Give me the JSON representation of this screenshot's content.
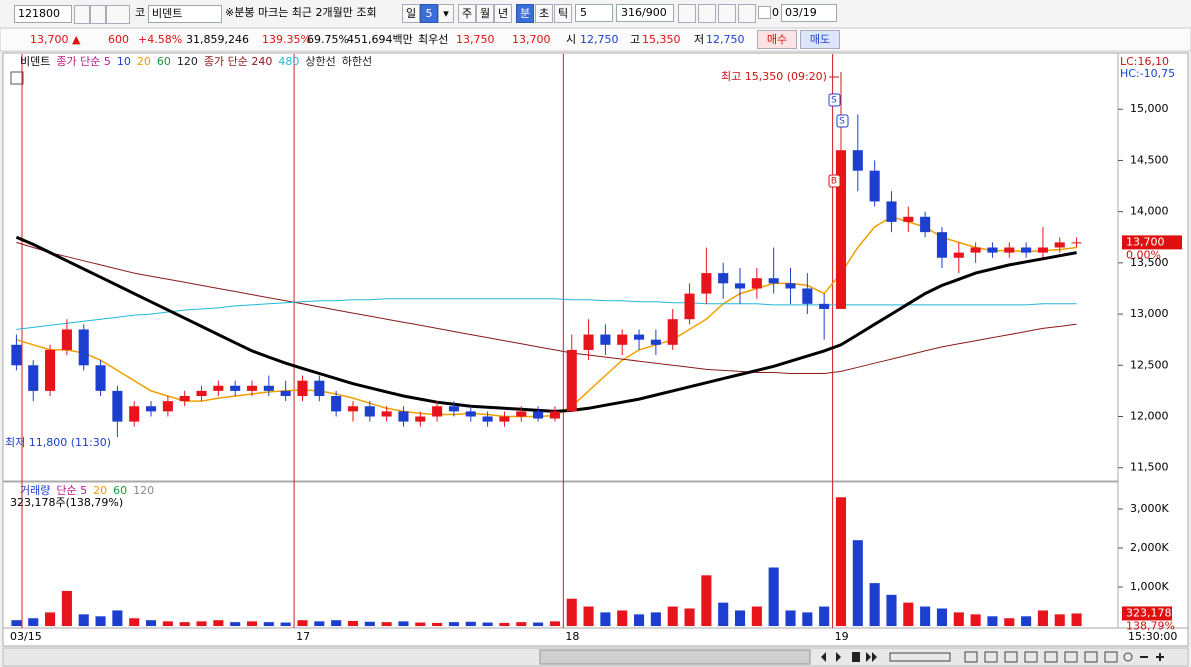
{
  "toolbar": {
    "code": "121800",
    "market": "코",
    "name": "비덴트",
    "note": "※분봉 마크는 최근 2개월만 조회",
    "day": "일",
    "day_count": "5",
    "week": "주",
    "month": "월",
    "year": "년",
    "minute": "분",
    "second": "초",
    "tick": "틱",
    "interval": "5",
    "count": "316/900",
    "check_label": "0",
    "date": "03/19"
  },
  "quote": {
    "price": "13,700 ▲",
    "change": "600",
    "change_rate": "+4.58%",
    "volume": "31,859,246",
    "volume_rate": "139.35%",
    "rate2": "69.75%",
    "amount": "451,694백만",
    "best_label": "최우선",
    "best_ask": "13,750",
    "best_bid": "13,700",
    "open_label": "시",
    "open": "12,750",
    "high_label": "고",
    "high": "15,350",
    "low_label": "저",
    "low": "12,750",
    "buy": "매수",
    "sell": "매도"
  },
  "chart_data": [
    {
      "type": "candlestick",
      "title": "비덴트",
      "categories": [
        "03/15",
        null,
        null,
        null,
        null,
        null,
        null,
        null,
        null,
        null,
        null,
        null,
        null,
        null,
        null,
        null,
        null,
        "17",
        null,
        null,
        null,
        null,
        null,
        null,
        null,
        null,
        null,
        null,
        null,
        null,
        null,
        null,
        null,
        "18",
        null,
        null,
        null,
        null,
        null,
        null,
        null,
        null,
        null,
        null,
        null,
        null,
        null,
        null,
        null,
        "19",
        null,
        null,
        null,
        null,
        null,
        null,
        null,
        null,
        null,
        null,
        null,
        null,
        null,
        null
      ],
      "open": [
        12700,
        12500,
        12250,
        12650,
        12850,
        12500,
        12250,
        11950,
        12100,
        12050,
        12150,
        12200,
        12250,
        12300,
        12250,
        12300,
        12250,
        12200,
        12350,
        12200,
        12050,
        12100,
        12000,
        12050,
        11950,
        12000,
        12100,
        12050,
        12000,
        11950,
        12000,
        12050,
        11980,
        12050,
        12650,
        12800,
        12700,
        12800,
        12750,
        12700,
        12950,
        13200,
        13400,
        13300,
        13250,
        13350,
        13300,
        13250,
        13100,
        13050,
        14600,
        14400,
        14100,
        13900,
        13950,
        13800,
        13550,
        13600,
        13650,
        13600,
        13650,
        13600,
        13650,
        13700
      ],
      "high": [
        12800,
        12550,
        12700,
        12950,
        12900,
        12550,
        12300,
        12150,
        12150,
        12200,
        12250,
        12300,
        12350,
        12350,
        12350,
        12400,
        12350,
        12400,
        12400,
        12250,
        12150,
        12150,
        12100,
        12100,
        12050,
        12150,
        12150,
        12100,
        12050,
        12050,
        12100,
        12100,
        12100,
        12800,
        12950,
        12900,
        12850,
        12850,
        12850,
        13050,
        13300,
        13650,
        13500,
        13450,
        13450,
        13650,
        13450,
        13400,
        13200,
        15350,
        14950,
        14500,
        14200,
        14050,
        14000,
        13850,
        13700,
        13700,
        13700,
        13700,
        13700,
        13850,
        13750,
        13750
      ],
      "low": [
        12450,
        12150,
        12200,
        12600,
        12450,
        12200,
        11800,
        11900,
        12000,
        12000,
        12100,
        12150,
        12200,
        12200,
        12200,
        12200,
        12150,
        12150,
        12150,
        12000,
        11950,
        11950,
        11950,
        11900,
        11900,
        11950,
        12000,
        11950,
        11900,
        11900,
        11950,
        11950,
        11950,
        12050,
        12550,
        12600,
        12600,
        12650,
        12600,
        12650,
        12900,
        13100,
        13150,
        13100,
        13150,
        13200,
        13100,
        13000,
        12750,
        13050,
        14200,
        14050,
        13800,
        13800,
        13750,
        13450,
        13400,
        13500,
        13550,
        13550,
        13550,
        13550,
        13600,
        13650
      ],
      "close": [
        12500,
        12250,
        12650,
        12850,
        12500,
        12250,
        11950,
        12100,
        12050,
        12150,
        12200,
        12250,
        12300,
        12250,
        12300,
        12250,
        12200,
        12350,
        12200,
        12050,
        12100,
        12000,
        12050,
        11950,
        12000,
        12100,
        12050,
        12000,
        11950,
        12000,
        12050,
        11980,
        12050,
        12650,
        12800,
        12700,
        12800,
        12750,
        12700,
        12950,
        13200,
        13400,
        13300,
        13250,
        13350,
        13300,
        13250,
        13100,
        13050,
        14600,
        14400,
        14100,
        13900,
        13950,
        13800,
        13550,
        13600,
        13650,
        13600,
        13650,
        13600,
        13650,
        13700,
        13700
      ],
      "up_color": "#e8141c",
      "down_color": "#1c3fd0",
      "legend": [
        {
          "label": "종가 단순 5",
          "color": "#c0168c"
        },
        {
          "label": "10",
          "color": "#1c3fd0"
        },
        {
          "label": "20",
          "color": "#f0a000"
        },
        {
          "label": "60",
          "color": "#1a9a3a"
        },
        {
          "label": "120",
          "color": "#222222"
        },
        {
          "label": "종가 단순 240",
          "color": "#8b1a1a"
        },
        {
          "label": "480",
          "color": "#20b8d8"
        },
        {
          "label": "상한선",
          "color": "#222222"
        },
        {
          "label": "하한선",
          "color": "#222222"
        }
      ],
      "lines": [
        {
          "color": "#f0a000",
          "width": 1.5,
          "values": [
            12750,
            12700,
            12650,
            12650,
            12620,
            12550,
            12450,
            12350,
            12250,
            12200,
            12150,
            12150,
            12180,
            12200,
            12220,
            12240,
            12250,
            12260,
            12250,
            12220,
            12180,
            12130,
            12080,
            12050,
            12030,
            12020,
            12020,
            12030,
            12020,
            12000,
            12000,
            12000,
            12010,
            12100,
            12250,
            12400,
            12550,
            12650,
            12700,
            12750,
            12850,
            12950,
            13100,
            13200,
            13250,
            13300,
            13300,
            13280,
            13200,
            13400,
            13650,
            13850,
            13950,
            13900,
            13850,
            13750,
            13700,
            13650,
            13620,
            13620,
            13610,
            13620,
            13630,
            13650
          ]
        },
        {
          "color": "#8b1a1a",
          "width": 1,
          "values": [
            13700,
            13650,
            13600,
            13560,
            13520,
            13480,
            13440,
            13400,
            13370,
            13340,
            13310,
            13280,
            13250,
            13220,
            13190,
            13160,
            13130,
            13100,
            13070,
            13040,
            13010,
            12980,
            12950,
            12920,
            12890,
            12860,
            12830,
            12800,
            12770,
            12740,
            12710,
            12680,
            12650,
            12620,
            12600,
            12580,
            12560,
            12540,
            12520,
            12500,
            12480,
            12460,
            12450,
            12440,
            12430,
            12430,
            12420,
            12420,
            12420,
            12440,
            12480,
            12520,
            12560,
            12600,
            12640,
            12680,
            12710,
            12740,
            12770,
            12800,
            12830,
            12860,
            12880,
            12900
          ]
        },
        {
          "color": "#20b8d8",
          "width": 1,
          "values": [
            12850,
            12870,
            12890,
            12910,
            12930,
            12950,
            12970,
            12990,
            13000,
            13020,
            13040,
            13050,
            13060,
            13080,
            13090,
            13100,
            13110,
            13120,
            13130,
            13130,
            13140,
            13140,
            13150,
            13150,
            13150,
            13150,
            13150,
            13150,
            13150,
            13150,
            13150,
            13150,
            13150,
            13140,
            13140,
            13130,
            13130,
            13120,
            13120,
            13110,
            13110,
            13100,
            13100,
            13100,
            13100,
            13090,
            13090,
            13090,
            13090,
            13090,
            13090,
            13090,
            13090,
            13090,
            13090,
            13090,
            13090,
            13090,
            13090,
            13090,
            13090,
            13100,
            13100,
            13100
          ]
        },
        {
          "color": "#000000",
          "width": 3,
          "values": [
            13750,
            13680,
            13600,
            13520,
            13440,
            13360,
            13280,
            13200,
            13120,
            13040,
            12960,
            12880,
            12800,
            12720,
            12640,
            12580,
            12520,
            12470,
            12420,
            12370,
            12320,
            12280,
            12240,
            12200,
            12170,
            12140,
            12120,
            12100,
            12090,
            12080,
            12070,
            12060,
            12050,
            12060,
            12080,
            12110,
            12140,
            12170,
            12210,
            12250,
            12290,
            12330,
            12370,
            12410,
            12450,
            12490,
            12540,
            12590,
            12640,
            12700,
            12800,
            12900,
            13000,
            13100,
            13200,
            13280,
            13340,
            13400,
            13440,
            13480,
            13510,
            13540,
            13570,
            13600
          ]
        }
      ],
      "ylim": [
        11380,
        15510
      ],
      "yticks": [
        {
          "value": 11500,
          "label": "11,500"
        },
        {
          "value": 12000,
          "label": "12,000"
        },
        {
          "value": 12500,
          "label": "12,500"
        },
        {
          "value": 13000,
          "label": "13,000"
        },
        {
          "value": 13500,
          "label": "13,500"
        },
        {
          "value": 14000,
          "label": "14,000"
        },
        {
          "value": 14500,
          "label": "14,500"
        },
        {
          "value": 15000,
          "label": "15,000"
        }
      ],
      "annotations": {
        "high": "최고 15,350 (09:20)",
        "low": "최저 11,800 (11:30)",
        "lc": "LC:16,10",
        "hc": "HC:-10,75",
        "last": "13,700",
        "last_rate": "0.00%"
      },
      "signals": [
        "S",
        "S",
        "B"
      ],
      "x_end_label": "15:30:00"
    },
    {
      "type": "bar",
      "title": "거래량",
      "values": [
        150,
        200,
        350,
        900,
        300,
        250,
        400,
        200,
        150,
        120,
        100,
        120,
        150,
        100,
        120,
        100,
        90,
        150,
        120,
        150,
        130,
        110,
        100,
        120,
        90,
        80,
        100,
        110,
        90,
        80,
        100,
        90,
        120,
        700,
        500,
        350,
        400,
        300,
        350,
        500,
        450,
        1300,
        600,
        400,
        500,
        1500,
        400,
        350,
        500,
        3300,
        2200,
        1100,
        800,
        600,
        500,
        450,
        350,
        300,
        250,
        200,
        250,
        400,
        300,
        323
      ],
      "legend": [
        {
          "label": "단순 5",
          "color": "#c0168c"
        },
        {
          "label": "20",
          "color": "#f0a000"
        },
        {
          "label": "60",
          "color": "#1a9a3a"
        },
        {
          "label": "120",
          "color": "#888888"
        }
      ],
      "ylim": [
        -50,
        3640
      ],
      "yticks": [
        {
          "value": 1000,
          "label": "1,000K"
        },
        {
          "value": 2000,
          "label": "2,000K"
        },
        {
          "value": 3000,
          "label": "3,000K"
        }
      ],
      "annotations": {
        "summary": "323,178주(138,79%)",
        "last": "323,178",
        "last_rate": "138,79%"
      }
    }
  ]
}
